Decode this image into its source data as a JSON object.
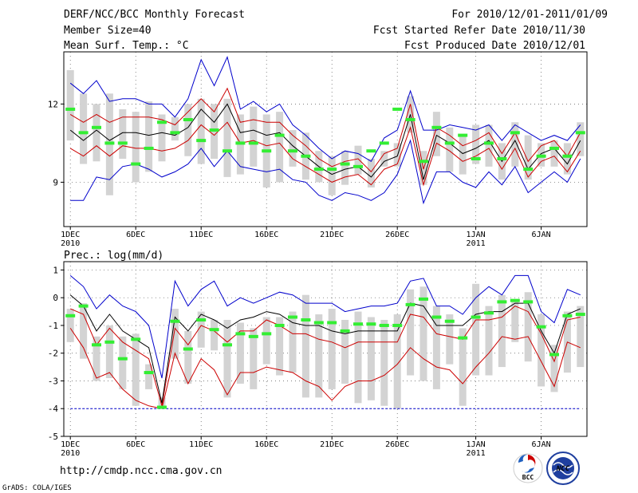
{
  "header": {
    "title": "DERF/NCC/BCC Monthly Forecast",
    "member_size": "Member Size=40",
    "variable": "Mean Surf. Temp.: °C",
    "period": "For 2010/12/01-2011/01/09",
    "refer_date": "Fcst Started Refer Date 2010/11/30",
    "produced_date": "Fcst Produced Date 2010/12/01"
  },
  "footer": {
    "url": "http://cmdp.ncc.cma.gov.cn",
    "grads": "GrADS: COLA/IGES",
    "logo_bcc": "BCC",
    "logo_ncc": "NCC"
  },
  "colors": {
    "max_min": "#0000cc",
    "spread": "#cc0000",
    "mean": "#000000",
    "box": "#d3d3d3",
    "marker": "#33ee33",
    "baseline": "#0000cc"
  },
  "chart_data": [
    {
      "type": "line",
      "name": "temperature",
      "title": "Mean Surf. Temp.: °C",
      "ylim": [
        7.3,
        14.0
      ],
      "yticks": [
        9,
        12
      ],
      "xlim": [
        0.5,
        40.5
      ],
      "xticks": [
        {
          "x": 1,
          "label": "1DEC",
          "sub": "2010"
        },
        {
          "x": 6,
          "label": "6DEC",
          "sub": ""
        },
        {
          "x": 11,
          "label": "11DEC",
          "sub": ""
        },
        {
          "x": 16,
          "label": "16DEC",
          "sub": ""
        },
        {
          "x": 21,
          "label": "21DEC",
          "sub": ""
        },
        {
          "x": 26,
          "label": "26DEC",
          "sub": ""
        },
        {
          "x": 32,
          "label": "1JAN",
          "sub": "2011"
        },
        {
          "x": 37,
          "label": "6JAN",
          "sub": ""
        }
      ],
      "days": [
        1,
        2,
        3,
        4,
        5,
        6,
        7,
        8,
        9,
        10,
        11,
        12,
        13,
        14,
        15,
        16,
        17,
        18,
        19,
        20,
        21,
        22,
        23,
        24,
        25,
        26,
        27,
        28,
        29,
        30,
        31,
        32,
        33,
        34,
        35,
        36,
        37,
        38,
        39,
        40
      ],
      "series": [
        {
          "name": "max",
          "values": [
            12.8,
            12.4,
            12.9,
            12.1,
            12.2,
            12.2,
            12.0,
            12.0,
            11.5,
            12.2,
            13.7,
            12.7,
            13.8,
            11.8,
            12.1,
            11.7,
            12.0,
            11.2,
            10.8,
            10.3,
            9.9,
            10.2,
            10.1,
            9.8,
            10.7,
            11.0,
            12.5,
            11.0,
            11.0,
            11.2,
            11.1,
            11.0,
            11.2,
            10.6,
            11.2,
            10.9,
            10.6,
            10.8,
            10.6,
            11.2
          ]
        },
        {
          "name": "upper",
          "values": [
            11.6,
            11.3,
            11.6,
            11.3,
            11.5,
            11.5,
            11.5,
            11.4,
            11.2,
            11.7,
            12.2,
            11.7,
            12.6,
            11.3,
            11.4,
            11.3,
            11.3,
            10.8,
            10.4,
            9.9,
            9.6,
            9.8,
            9.9,
            9.4,
            10.1,
            10.3,
            12.0,
            9.5,
            11.1,
            10.8,
            10.4,
            10.6,
            10.9,
            10.1,
            10.9,
            9.8,
            10.4,
            10.6,
            10.0,
            10.9
          ]
        },
        {
          "name": "mean",
          "values": [
            11.0,
            10.6,
            11.0,
            10.6,
            10.9,
            10.9,
            10.8,
            10.9,
            10.8,
            11.1,
            11.8,
            11.3,
            12.0,
            10.9,
            11.0,
            10.8,
            10.9,
            10.4,
            10.0,
            9.6,
            9.3,
            9.5,
            9.6,
            9.2,
            9.8,
            10.0,
            11.6,
            9.1,
            10.8,
            10.5,
            10.1,
            10.3,
            10.6,
            9.8,
            10.6,
            9.5,
            10.1,
            10.3,
            9.7,
            10.6
          ]
        },
        {
          "name": "lower",
          "values": [
            10.3,
            10.0,
            10.4,
            10.0,
            10.4,
            10.3,
            10.3,
            10.2,
            10.3,
            10.6,
            11.2,
            10.8,
            11.3,
            10.5,
            10.6,
            10.4,
            10.5,
            9.9,
            9.6,
            9.3,
            9.0,
            9.2,
            9.3,
            8.9,
            9.5,
            9.7,
            11.1,
            8.9,
            10.5,
            10.2,
            9.8,
            10.0,
            10.3,
            9.5,
            10.3,
            9.2,
            9.8,
            10.0,
            9.4,
            10.2
          ]
        },
        {
          "name": "min",
          "values": [
            8.3,
            8.3,
            9.2,
            9.1,
            9.6,
            9.7,
            9.5,
            9.2,
            9.4,
            9.7,
            10.3,
            9.6,
            10.2,
            9.6,
            9.5,
            9.4,
            9.5,
            9.1,
            9.0,
            8.5,
            8.3,
            8.6,
            8.5,
            8.3,
            8.6,
            9.3,
            10.6,
            8.2,
            9.4,
            9.4,
            9.0,
            8.8,
            9.4,
            8.9,
            9.6,
            8.6,
            9.0,
            9.4,
            9.0,
            9.9
          ]
        },
        {
          "name": "box_top",
          "values": [
            13.3,
            12.4,
            12.0,
            12.4,
            11.8,
            11.7,
            12.1,
            11.6,
            11.5,
            12.0,
            12.2,
            12.0,
            12.2,
            11.6,
            11.9,
            11.6,
            11.7,
            11.0,
            10.9,
            10.2,
            10.0,
            10.2,
            10.4,
            9.9,
            10.2,
            10.5,
            12.3,
            10.2,
            11.7,
            11.1,
            10.8,
            11.2,
            11.2,
            10.5,
            11.3,
            10.8,
            10.5,
            10.6,
            10.5,
            11.3
          ]
        },
        {
          "name": "box_bottom",
          "values": [
            10.6,
            9.7,
            9.8,
            8.5,
            9.9,
            9.0,
            9.4,
            9.8,
            10.6,
            10.0,
            9.7,
            9.9,
            9.2,
            9.3,
            9.6,
            8.8,
            9.0,
            9.6,
            9.1,
            9.0,
            8.5,
            8.9,
            9.3,
            8.8,
            9.6,
            9.6,
            10.9,
            8.9,
            10.0,
            9.4,
            9.3,
            9.7,
            9.6,
            9.1,
            9.6,
            9.1,
            9.6,
            9.6,
            9.3,
            10.0
          ]
        },
        {
          "name": "marker",
          "values": [
            11.8,
            10.9,
            11.1,
            10.5,
            10.5,
            9.7,
            10.3,
            11.3,
            10.9,
            11.4,
            10.6,
            11.0,
            10.2,
            10.5,
            10.5,
            10.2,
            10.8,
            10.2,
            10.0,
            9.5,
            9.5,
            9.7,
            9.6,
            10.2,
            10.5,
            11.8,
            11.4,
            9.8,
            11.1,
            10.5,
            10.8,
            9.9,
            10.5,
            9.9,
            10.9,
            9.5,
            10.0,
            10.3,
            10.0,
            10.9
          ]
        }
      ]
    },
    {
      "type": "line",
      "name": "precipitation",
      "title": "Prec.: log(mm/d)",
      "ylim": [
        -5,
        1.3
      ],
      "yticks": [
        -5,
        -4,
        -3,
        -2,
        -1,
        0,
        1
      ],
      "xlim": [
        0.5,
        40.5
      ],
      "xticks": [
        {
          "x": 1,
          "label": "1DEC",
          "sub": "2010"
        },
        {
          "x": 6,
          "label": "6DEC",
          "sub": ""
        },
        {
          "x": 11,
          "label": "11DEC",
          "sub": ""
        },
        {
          "x": 16,
          "label": "16DEC",
          "sub": ""
        },
        {
          "x": 21,
          "label": "21DEC",
          "sub": ""
        },
        {
          "x": 26,
          "label": "26DEC",
          "sub": ""
        },
        {
          "x": 32,
          "label": "1JAN",
          "sub": "2011"
        },
        {
          "x": 37,
          "label": "6JAN",
          "sub": ""
        }
      ],
      "baseline": -4,
      "days": [
        1,
        2,
        3,
        4,
        5,
        6,
        7,
        8,
        9,
        10,
        11,
        12,
        13,
        14,
        15,
        16,
        17,
        18,
        19,
        20,
        21,
        22,
        23,
        24,
        25,
        26,
        27,
        28,
        29,
        30,
        31,
        32,
        33,
        34,
        35,
        36,
        37,
        38,
        39,
        40
      ],
      "series": [
        {
          "name": "max",
          "values": [
            0.8,
            0.4,
            -0.4,
            0.1,
            -0.3,
            -0.5,
            -1.0,
            -2.9,
            0.6,
            -0.3,
            0.3,
            0.6,
            -0.3,
            0.0,
            -0.2,
            0.0,
            0.2,
            0.1,
            -0.2,
            -0.2,
            -0.2,
            -0.5,
            -0.4,
            -0.3,
            -0.3,
            -0.2,
            0.6,
            0.7,
            -0.3,
            -0.3,
            -0.6,
            0.0,
            0.4,
            0.1,
            0.8,
            0.8,
            -0.5,
            -0.9,
            0.3,
            0.1
          ]
        },
        {
          "name": "mean",
          "values": [
            0.1,
            -0.3,
            -1.2,
            -0.6,
            -1.2,
            -1.5,
            -1.8,
            -3.8,
            -0.7,
            -1.2,
            -0.6,
            -0.8,
            -1.1,
            -0.8,
            -0.7,
            -0.5,
            -0.6,
            -0.9,
            -1.0,
            -1.0,
            -1.2,
            -1.3,
            -1.2,
            -1.2,
            -1.2,
            -1.2,
            -0.2,
            -0.3,
            -1.0,
            -1.0,
            -1.0,
            -0.6,
            -0.5,
            -0.5,
            -0.2,
            -0.2,
            -1.2,
            -2.0,
            -0.6,
            -0.4
          ]
        },
        {
          "name": "upper",
          "values": [
            -0.4,
            -0.6,
            -1.7,
            -1.1,
            -1.6,
            -1.9,
            -2.2,
            -3.9,
            -1.1,
            -1.7,
            -1.0,
            -1.2,
            -1.6,
            -1.2,
            -1.2,
            -0.8,
            -1.0,
            -1.3,
            -1.3,
            -1.5,
            -1.6,
            -1.8,
            -1.6,
            -1.6,
            -1.6,
            -1.6,
            -0.6,
            -0.7,
            -1.3,
            -1.4,
            -1.5,
            -0.8,
            -0.8,
            -0.7,
            -0.3,
            -0.5,
            -1.3,
            -2.3,
            -0.8,
            -0.7
          ]
        },
        {
          "name": "lower",
          "values": [
            -1.1,
            -1.8,
            -2.9,
            -2.7,
            -3.3,
            -3.7,
            -3.9,
            -4.0,
            -2.0,
            -3.1,
            -2.2,
            -2.6,
            -3.5,
            -2.7,
            -2.7,
            -2.5,
            -2.6,
            -2.7,
            -3.0,
            -3.2,
            -3.7,
            -3.2,
            -3.0,
            -3.0,
            -2.8,
            -2.4,
            -1.8,
            -2.2,
            -2.5,
            -2.6,
            -3.1,
            -2.5,
            -2.0,
            -1.4,
            -1.5,
            -1.4,
            -2.3,
            -3.2,
            -1.6,
            -1.8
          ]
        },
        {
          "name": "box_top",
          "values": [
            -0.4,
            -0.2,
            -1.4,
            -1.0,
            -1.4,
            -1.3,
            -2.4,
            -3.6,
            -0.4,
            -1.2,
            -0.5,
            -0.8,
            -0.8,
            -0.9,
            -1.1,
            -0.7,
            -0.7,
            -0.5,
            0.1,
            -0.6,
            -0.4,
            -0.8,
            -0.5,
            -0.7,
            -0.8,
            -0.6,
            0.3,
            0.4,
            -0.3,
            -0.6,
            -1.1,
            0.5,
            -0.3,
            0.1,
            -0.1,
            0.2,
            -0.6,
            -1.7,
            -0.5,
            -0.3
          ]
        },
        {
          "name": "box_bottom",
          "values": [
            -1.6,
            -2.2,
            -3.0,
            -2.9,
            -3.3,
            -3.9,
            -3.3,
            -3.9,
            -2.2,
            -3.1,
            -1.8,
            -1.9,
            -3.6,
            -3.1,
            -3.3,
            -2.4,
            -2.8,
            -2.7,
            -3.6,
            -3.6,
            -3.3,
            -3.1,
            -3.8,
            -3.7,
            -3.9,
            -4.0,
            -2.8,
            -3.0,
            -3.3,
            -2.4,
            -3.9,
            -2.8,
            -2.8,
            -2.5,
            -1.6,
            -2.3,
            -3.2,
            -3.4,
            -2.7,
            -2.5
          ]
        },
        {
          "name": "marker",
          "values": [
            -0.65,
            -0.3,
            -1.7,
            -1.6,
            -2.2,
            -1.5,
            -2.7,
            -3.95,
            -0.85,
            -1.85,
            -0.8,
            -1.15,
            -1.7,
            -1.3,
            -1.4,
            -1.3,
            -1.0,
            -0.7,
            -0.8,
            -0.9,
            -0.9,
            -1.2,
            -0.95,
            -0.95,
            -1.0,
            -1.0,
            -0.25,
            -0.05,
            -0.7,
            -0.85,
            -1.45,
            -0.7,
            -0.55,
            -0.15,
            -0.1,
            -0.15,
            -1.05,
            -2.05,
            -0.65,
            -0.6
          ]
        }
      ]
    }
  ]
}
